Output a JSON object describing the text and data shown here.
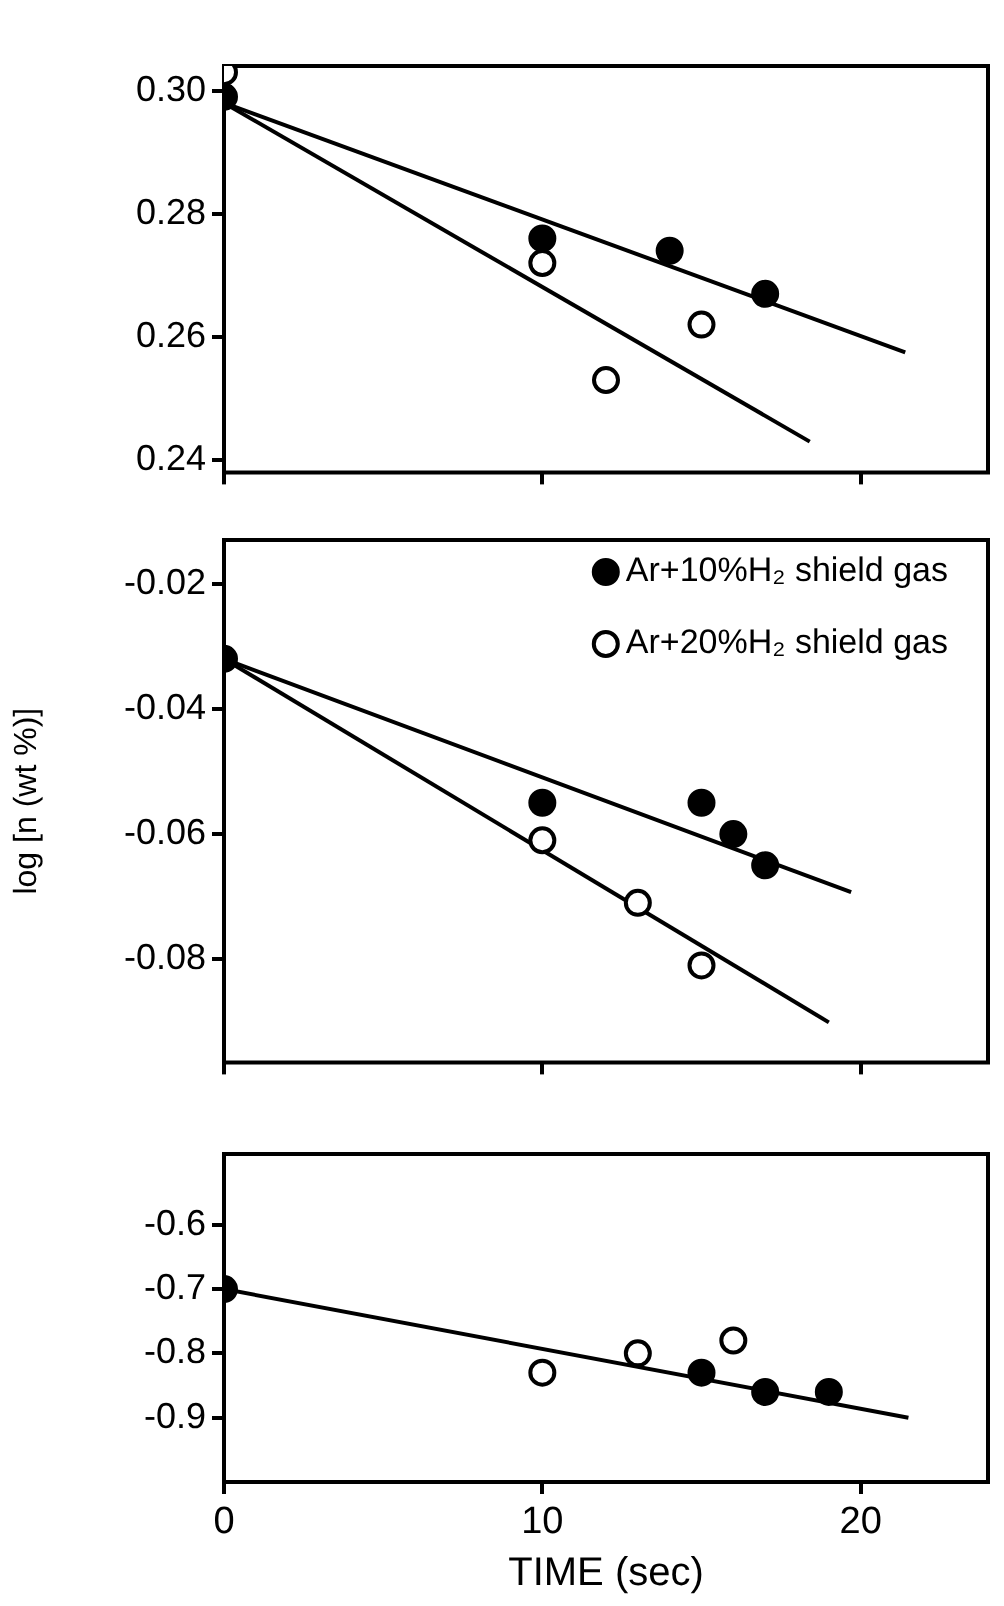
{
  "chart_data": [
    {
      "type": "scatter",
      "xlim": [
        0,
        24
      ],
      "xticks": [
        0,
        10,
        20
      ],
      "ylim": [
        0.238,
        0.304
      ],
      "yticks": [
        {
          "value": 0.3,
          "label": "0.30"
        },
        0.28,
        0.26,
        0.24
      ],
      "tick_labels": "y",
      "legend": false,
      "series": [
        {
          "color": "#000000",
          "marker": "circle",
          "x": [
            0,
            10,
            14,
            17
          ],
          "values": [
            0.299,
            0.276,
            0.274,
            0.267
          ]
        },
        {
          "color": "#ffffff",
          "marker": "circle",
          "x": [
            0,
            10,
            12,
            15
          ],
          "values": [
            0.303,
            0.272,
            0.253,
            0.262
          ]
        },
        {
          "type": "line",
          "color": "#000000",
          "marker": "none",
          "x": [
            0,
            21.4
          ],
          "values": [
            0.298,
            0.2575
          ]
        },
        {
          "type": "line",
          "color": "#000000",
          "marker": "none",
          "x": [
            0,
            18.4
          ],
          "values": [
            0.298,
            0.243
          ]
        }
      ]
    },
    {
      "type": "scatter",
      "ylabel": "log [n (wt %)]",
      "xlim": [
        0,
        24
      ],
      "xticks": [
        0,
        10,
        20
      ],
      "ylim": [
        -0.0965,
        -0.013
      ],
      "yticks": [
        -0.02,
        -0.04,
        -0.06,
        -0.08
      ],
      "tick_labels": "y",
      "legend": "top right",
      "series": [
        {
          "name": "Ar+10%H₂ shield gas",
          "color": "#000000",
          "marker": "circle",
          "x": [
            0,
            10,
            15,
            16,
            17
          ],
          "values": [
            -0.032,
            -0.055,
            -0.055,
            -0.06,
            -0.065
          ]
        },
        {
          "name": "Ar+20%H₂ shield gas",
          "color": "#ffffff",
          "marker": "circle",
          "x": [
            10,
            13,
            15
          ],
          "values": [
            -0.061,
            -0.071,
            -0.081
          ]
        },
        {
          "type": "line",
          "color": "#000000",
          "marker": "none",
          "x": [
            0,
            19.7
          ],
          "values": [
            -0.032,
            -0.0693
          ]
        },
        {
          "type": "line",
          "color": "#000000",
          "marker": "none",
          "x": [
            0,
            19.0
          ],
          "values": [
            -0.032,
            -0.0901
          ]
        }
      ]
    },
    {
      "type": "scatter",
      "xlabel": "TIME (sec)",
      "xlim": [
        0,
        24
      ],
      "xticks": [
        0,
        10,
        20
      ],
      "ylim": [
        -1.0,
        -0.49
      ],
      "yticks": [
        -0.6,
        -0.7,
        -0.8,
        -0.9
      ],
      "legend": false,
      "series": [
        {
          "color": "#000000",
          "marker": "circle",
          "x": [
            0,
            15,
            17,
            19
          ],
          "values": [
            -0.7,
            -0.83,
            -0.86,
            -0.86
          ]
        },
        {
          "color": "#ffffff",
          "marker": "circle",
          "x": [
            10,
            13,
            16
          ],
          "values": [
            -0.83,
            -0.8,
            -0.78
          ]
        },
        {
          "type": "line",
          "color": "#000000",
          "marker": "none",
          "x": [
            0,
            21.5
          ],
          "values": [
            -0.7,
            -0.9
          ]
        }
      ]
    }
  ]
}
